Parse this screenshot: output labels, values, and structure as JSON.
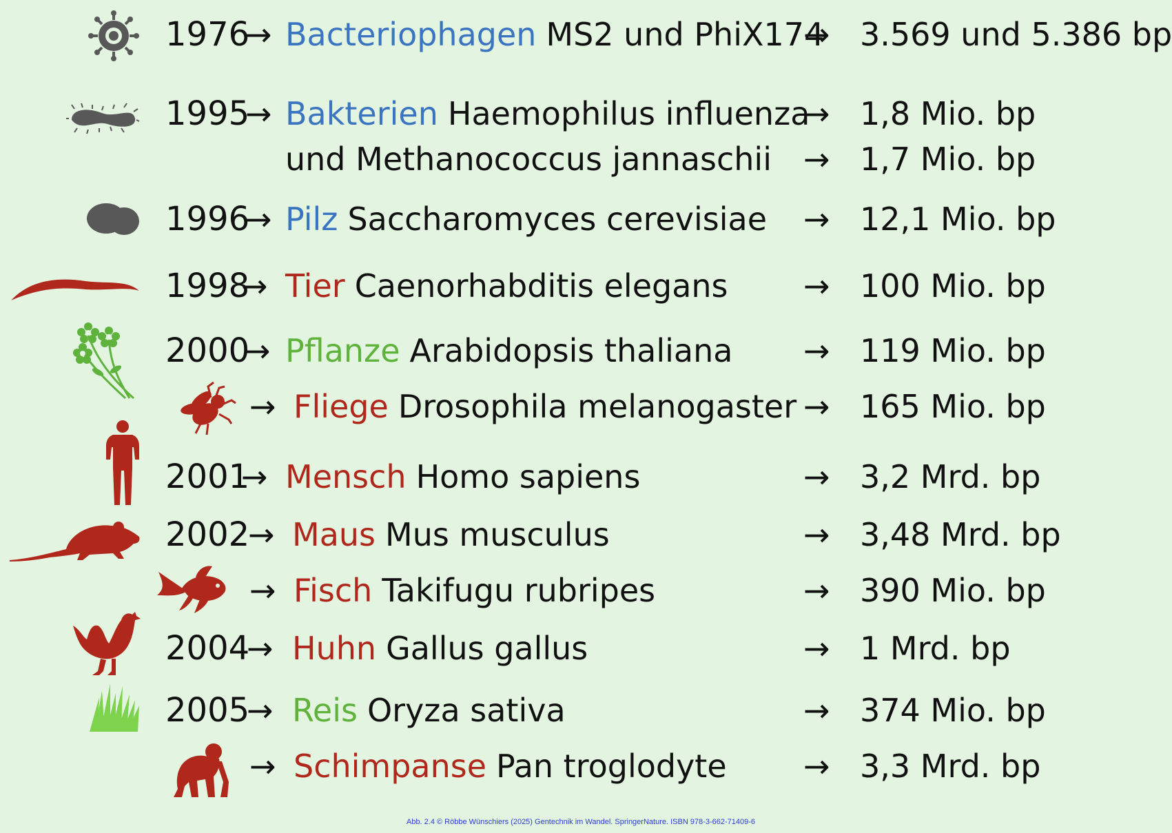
{
  "colors": {
    "background": "#e3f5e1",
    "blue": "#3b74c0",
    "green": "#5fb33c",
    "red": "#b0281c",
    "grey": "#585858"
  },
  "rows": [
    {
      "year": "1976",
      "category": "Bacteriophagen",
      "species": "MS2 und PhiX174",
      "size": "3.569 und 5.386 bp",
      "icon": "virus-icon",
      "color": "blue"
    },
    {
      "year": "1995",
      "category": "Bakterien",
      "species": "Haemophilus influenza",
      "size": "1,8 Mio. bp",
      "icon": "bacterium-icon",
      "color": "blue"
    },
    {
      "year": "",
      "category": "",
      "species": "und Methanococcus jannaschii",
      "size": "1,7 Mio. bp",
      "icon": "",
      "color": "blue"
    },
    {
      "year": "1996",
      "category": "Pilz",
      "species": "Saccharomyces cerevisiae",
      "size": "12,1 Mio. bp",
      "icon": "yeast-icon",
      "color": "blue"
    },
    {
      "year": "1998",
      "category": "Tier",
      "species": "Caenorhabditis elegans",
      "size": "100 Mio. bp",
      "icon": "worm-icon",
      "color": "red"
    },
    {
      "year": "2000",
      "category": "Pflanze",
      "species": "Arabidopsis thaliana",
      "size": "119 Mio. bp",
      "icon": "flower-icon",
      "color": "green"
    },
    {
      "year": "",
      "category": "Fliege",
      "species": "Drosophila melanogaster",
      "size": "165 Mio. bp",
      "icon": "fly-icon",
      "color": "red"
    },
    {
      "year": "2001",
      "category": "Mensch",
      "species": "Homo sapiens",
      "size": "3,2 Mrd. bp",
      "icon": "human-icon",
      "color": "red"
    },
    {
      "year": "2002",
      "category": "Maus",
      "species": "Mus musculus",
      "size": "3,48 Mrd. bp",
      "icon": "mouse-icon",
      "color": "red"
    },
    {
      "year": "",
      "category": "Fisch",
      "species": "Takifugu rubripes",
      "size": "390 Mio. bp",
      "icon": "fish-icon",
      "color": "red"
    },
    {
      "year": "2004",
      "category": "Huhn",
      "species": "Gallus gallus",
      "size": "1 Mrd. bp",
      "icon": "chicken-icon",
      "color": "red"
    },
    {
      "year": "2005",
      "category": "Reis",
      "species": "Oryza sativa",
      "size": "374 Mio. bp",
      "icon": "grass-icon",
      "color": "green"
    },
    {
      "year": "",
      "category": "Schimpanse",
      "species": "Pan troglodyte",
      "size": "3,3 Mrd. bp",
      "icon": "chimpanzee-icon",
      "color": "red"
    }
  ],
  "arrow": "→",
  "credit": "Abb. 2.4 © Röbbe Wünschiers (2025) Gentechnik im Wandel. SpringerNature. ISBN 978-3-662-71409-6"
}
